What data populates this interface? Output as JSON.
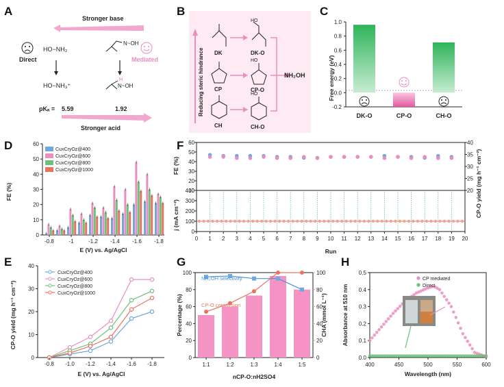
{
  "panels": {
    "A": {
      "label": "A",
      "stronger_base": "Stronger base",
      "stronger_acid": "Stronger acid",
      "direct": "Direct",
      "mediated": "Mediated",
      "reactant_direct": "HO−NH₂",
      "product_direct": "HO−NH₃⁺",
      "pka_label": "pKₐ =",
      "pka_direct": "5.59",
      "pka_mediated": "1.92"
    },
    "B": {
      "label": "B",
      "side_label": "Reducing steric hindrance",
      "ketones": [
        "DK",
        "CP",
        "CH"
      ],
      "oximes": [
        "DK-O",
        "CP-O",
        "CH-O"
      ],
      "product": "NH₂OH"
    },
    "C": {
      "label": "C",
      "chart_data": {
        "type": "bar",
        "categories": [
          "DK-O",
          "CP-O",
          "CH-O"
        ],
        "values": [
          0.96,
          -0.2,
          0.71
        ],
        "ylabel": "Free energy (eV)",
        "ylim": [
          -0.2,
          1.0
        ],
        "yticks": [
          "-0.2",
          "0.0",
          "0.2",
          "0.4",
          "0.6",
          "0.8",
          "1.0"
        ]
      }
    },
    "D": {
      "label": "D",
      "chart_data": {
        "type": "bar",
        "categories": [
          "-0.8",
          "-0.9",
          "-1",
          "-1.1",
          "-1.2",
          "-1.3",
          "-1.4",
          "-1.5",
          "-1.6",
          "-1.7",
          "-1.8"
        ],
        "xticks": [
          "-0.8",
          "-1",
          "-1.2",
          "-1.4",
          "-1.6",
          "-1.8"
        ],
        "series": [
          {
            "name": "CuxCryOz@400",
            "color": "#6fa8dc",
            "values": [
              1,
              3,
              5,
              8,
              13,
              12,
              11,
              14,
              20,
              22,
              21
            ]
          },
          {
            "name": "CuxCryOz@600",
            "color": "#ea8ec0",
            "values": [
              7,
              6,
              17,
              14,
              21,
              18,
              32,
              30,
              48,
              40,
              27
            ]
          },
          {
            "name": "CuxCryOz@800",
            "color": "#6cc07a",
            "values": [
              5,
              4,
              13,
              10,
              18,
              15,
              23,
              20,
              35,
              30,
              25
            ]
          },
          {
            "name": "CuxCryOz@1000",
            "color": "#e8735e",
            "values": [
              3,
              3,
              9,
              8,
              12,
              11,
              16,
              15,
              29,
              26,
              21
            ]
          }
        ],
        "xlabel": "E (V) vs. Ag/AgCl",
        "ylabel": "FE (%)",
        "ylim": [
          0,
          60
        ],
        "yticks": [
          "0",
          "10",
          "20",
          "30",
          "40",
          "50",
          "60"
        ]
      }
    },
    "E": {
      "label": "E",
      "chart_data": {
        "type": "line",
        "x": [
          -0.8,
          -1.0,
          -1.2,
          -1.4,
          -1.6,
          -1.8
        ],
        "xticks": [
          "-0.8",
          "-1.0",
          "-1.2",
          "-1.4",
          "-1.6",
          "-1.8"
        ],
        "series": [
          {
            "name": "CuxCryOz@400",
            "color": "#6fa8dc",
            "values": [
              0,
              1.5,
              3,
              7,
              17,
              20
            ]
          },
          {
            "name": "CuxCryOz@600",
            "color": "#ea8ec0",
            "values": [
              0,
              4.5,
              9,
              16,
              34,
              34
            ]
          },
          {
            "name": "CuxCryOz@800",
            "color": "#6cc07a",
            "values": [
              0,
              3,
              6,
              13,
              25,
              29
            ]
          },
          {
            "name": "CuxCryOz@1000",
            "color": "#e8735e",
            "values": [
              0,
              2,
              5,
              9,
              21,
              26
            ]
          }
        ],
        "xlabel": "E (V) vs. Ag/AgCl",
        "ylabel": "CP-O yield (mg h⁻¹ cm⁻²)",
        "ylim": [
          0,
          40
        ],
        "yticks": [
          "0",
          "10",
          "20",
          "30",
          "40"
        ]
      }
    },
    "F": {
      "label": "F",
      "chart_data": {
        "type": "scatter",
        "x": [
          1,
          2,
          3,
          4,
          5,
          6,
          7,
          8,
          9,
          10,
          11,
          12,
          13,
          14,
          15,
          16,
          17,
          18,
          19
        ],
        "xticks": [
          "0",
          "1",
          "2",
          "3",
          "4",
          "5",
          "6",
          "7",
          "8",
          "9",
          "10",
          "11",
          "12",
          "13",
          "14",
          "15",
          "16",
          "17",
          "18",
          "19",
          "20"
        ],
        "xlabel": "Run",
        "fe": [
          47,
          46,
          46,
          46,
          46,
          45,
          45,
          44,
          44,
          45,
          45,
          45,
          45,
          46,
          45,
          45,
          44,
          46,
          45
        ],
        "yield": [
          34,
          34,
          33.5,
          33.5,
          34,
          33.5,
          33.5,
          34,
          33.5,
          34,
          34,
          34,
          34,
          33.5,
          34,
          33.5,
          34,
          33.5,
          33.5
        ],
        "current": [
          100,
          100,
          100,
          100,
          100,
          100,
          100,
          100,
          100,
          100,
          100,
          100,
          100,
          100,
          100,
          100,
          100,
          100,
          100
        ],
        "ylabel_fe": "FE (%)",
        "ylabel_j": "j (mA cm⁻²)",
        "ylabel_yield": "CP-O yield (mg h⁻¹ cm⁻²)",
        "yticks_fe": [
          "10",
          "20",
          "30",
          "40",
          "50",
          "60"
        ],
        "yticks_j": [
          "0",
          "100",
          "200",
          "300",
          "400"
        ],
        "yticks_yield": [
          "20",
          "25",
          "30",
          "35",
          "40"
        ]
      }
    },
    "G": {
      "label": "G",
      "chart_data": {
        "type": "bar",
        "categories": [
          "1:1",
          "1:2",
          "1:3",
          "1:4",
          "1:5"
        ],
        "bars_concentration": [
          50,
          60,
          73,
          96,
          80
        ],
        "selectivity": [
          95,
          96,
          93,
          93,
          80
        ],
        "conversion": [
          54,
          64,
          78,
          100,
          100
        ],
        "xlabel": "nCP-O:nH2SO4",
        "ylabel_left": "Percentage (%)",
        "ylabel_right": "CHA (mmol L⁻¹)",
        "legend_selectivity": "NH₂OH selectivity",
        "legend_conversion": "CP-O conversion",
        "ylim": [
          0,
          100
        ],
        "yticks": [
          "0",
          "20",
          "40",
          "60",
          "80",
          "100"
        ]
      }
    },
    "H": {
      "label": "H",
      "chart_data": {
        "type": "line",
        "x": [
          400,
          420,
          440,
          460,
          480,
          500,
          510,
          520,
          540,
          560,
          580,
          600
        ],
        "series": [
          {
            "name": "CP mediated",
            "color": "#ea8ec0",
            "values": [
              0.1,
              0.18,
              0.26,
              0.33,
              0.38,
              0.41,
              0.42,
              0.4,
              0.3,
              0.14,
              0.03,
              0.005
            ]
          },
          {
            "name": "Direct",
            "color": "#6cc07a",
            "values": [
              0.01,
              0.01,
              0.01,
              0.01,
              0.01,
              0.01,
              0.01,
              0.01,
              0.01,
              0.01,
              0.01,
              0.01
            ]
          }
        ],
        "xlabel": "Wavelength (nm)",
        "ylabel": "Absorbance at 510 nm",
        "xticks": [
          "400",
          "450",
          "500",
          "550",
          "600"
        ],
        "yticks": [
          "0.0",
          "0.1",
          "0.2",
          "0.3",
          "0.4",
          "0.5"
        ],
        "ylim": [
          0,
          0.5
        ]
      }
    }
  }
}
